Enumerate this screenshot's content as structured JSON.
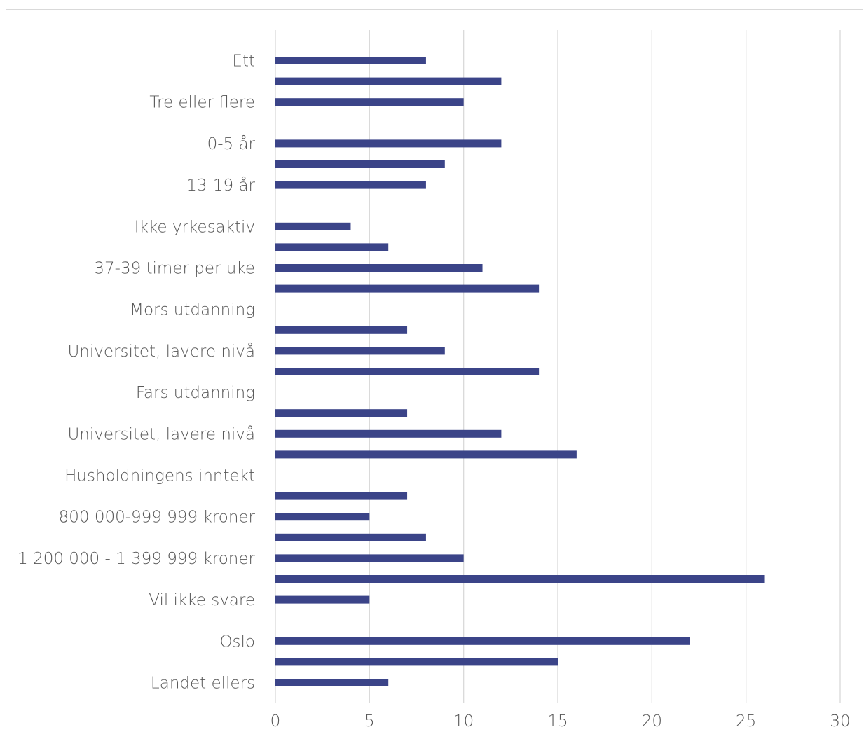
{
  "chart_data": {
    "type": "bar",
    "orientation": "horizontal",
    "title": "",
    "xlabel": "",
    "ylabel": "",
    "xlim": [
      0,
      30
    ],
    "x_ticks": [
      0,
      5,
      10,
      15,
      20,
      25,
      30
    ],
    "x_tick_labels": [
      "0",
      "5",
      "10",
      "15",
      "20",
      "25",
      "30"
    ],
    "grid": "vertical",
    "legend": "none",
    "bar_color": "#3b4488",
    "grid_color": "#d9d9d9",
    "categories": [
      "Ett",
      "",
      "Tre eller flere",
      "",
      "0-5 år",
      "",
      "13-19 år",
      "",
      "Ikke yrkesaktiv",
      "",
      "37-39 timer per uke",
      "",
      "Mors utdanning",
      "",
      "Universitet, lavere nivå",
      "",
      "Fars utdanning",
      "",
      "Universitet, lavere nivå",
      "",
      "Husholdningens inntekt",
      "",
      "800 000-999 999 kroner",
      "",
      "1 200 000 - 1 399 999 kroner",
      "",
      "Vil ikke svare",
      "",
      "Oslo",
      "",
      "Landet ellers"
    ],
    "values": [
      8,
      12,
      10,
      null,
      12,
      9,
      8,
      null,
      4,
      6,
      11,
      14,
      null,
      7,
      9,
      14,
      null,
      7,
      12,
      16,
      null,
      7,
      5,
      8,
      10,
      26,
      5,
      null,
      22,
      15,
      6
    ]
  }
}
